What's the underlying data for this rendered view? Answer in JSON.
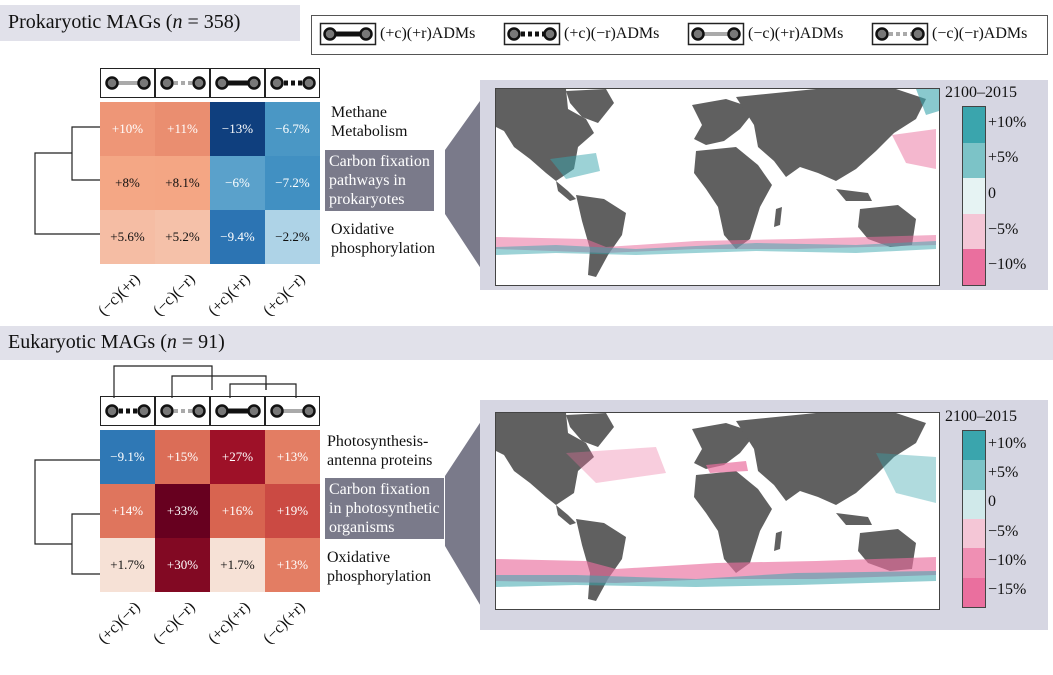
{
  "legend": {
    "items": [
      {
        "label": "(+c)(+r)ADMs",
        "line": "solid",
        "weight": "thick",
        "color": "#111111"
      },
      {
        "label": "(+c)(−r)ADMs",
        "line": "dotted",
        "weight": "thick",
        "color": "#111111"
      },
      {
        "label": "(−c)(+r)ADMs",
        "line": "solid",
        "weight": "thin",
        "color": "#aaaaaa"
      },
      {
        "label": "(−c)(−r)ADMs",
        "line": "dotted",
        "weight": "thin",
        "color": "#aaaaaa"
      }
    ]
  },
  "colors": {
    "band": "#e1e1ea",
    "map_panel": "#d6d6e2",
    "land": "#606060",
    "pathway_highlight": "#7a7a8a",
    "teal": "#3aa5ad",
    "pink": "#ea6f9e"
  },
  "chart_data": [
    {
      "type": "heatmap",
      "section_title": "Prokaryotic MAGs (",
      "n_label": "n",
      "n_value": " = 358)",
      "columns": [
        "(−c)(+r)",
        "(−c)(−r)",
        "(+c)(+r)",
        "(+c)(−r)"
      ],
      "column_icons": [
        "thin-solid",
        "thin-dotted",
        "thick-solid",
        "thick-dotted"
      ],
      "rows": [
        "Methane\nMetabolism",
        "Carbon fixation\npathways in\nprokaryotes",
        "Oxidative\nphosphorylation"
      ],
      "highlighted_row": 1,
      "values": [
        [
          10,
          11,
          -13,
          -6.7
        ],
        [
          8,
          8.1,
          -6,
          -7.2
        ],
        [
          5.6,
          5.2,
          -9.4,
          -2.2
        ]
      ],
      "labels": [
        [
          "+10%",
          "+11%",
          "−13%",
          "−6.7%"
        ],
        [
          "+8%",
          "+8.1%",
          "−6%",
          "−7.2%"
        ],
        [
          "+5.6%",
          "+5.2%",
          "−9.4%",
          "−2.2%"
        ]
      ],
      "colorbar": {
        "title": "2100–2015",
        "ticks": [
          "+10%",
          "+5%",
          "0",
          "−5%",
          "−10%"
        ]
      }
    },
    {
      "type": "heatmap",
      "section_title": "Eukaryotic MAGs (",
      "n_label": "n",
      "n_value": " = 91)",
      "columns": [
        "(+c)(−r)",
        "(−c)(−r)",
        "(+c)(+r)",
        "(−c)(+r)"
      ],
      "column_icons": [
        "thick-dotted",
        "thin-dotted",
        "thick-solid",
        "thin-solid"
      ],
      "rows": [
        "Photosynthesis-\nantenna proteins",
        "Carbon fixation\nin photosynthetic\norganisms",
        "Oxidative\nphosphorylation"
      ],
      "highlighted_row": 1,
      "values": [
        [
          -9.1,
          15,
          27,
          13
        ],
        [
          14,
          33,
          16,
          19
        ],
        [
          1.7,
          30,
          1.7,
          13
        ]
      ],
      "labels": [
        [
          "−9.1%",
          "+15%",
          "+27%",
          "+13%"
        ],
        [
          "+14%",
          "+33%",
          "+16%",
          "+19%"
        ],
        [
          "+1.7%",
          "+30%",
          "+1.7%",
          "+13%"
        ]
      ],
      "colorbar": {
        "title": "2100–2015",
        "ticks": [
          "+10%",
          "+5%",
          "0",
          "−5%",
          "−10%",
          "−15%"
        ]
      }
    }
  ]
}
